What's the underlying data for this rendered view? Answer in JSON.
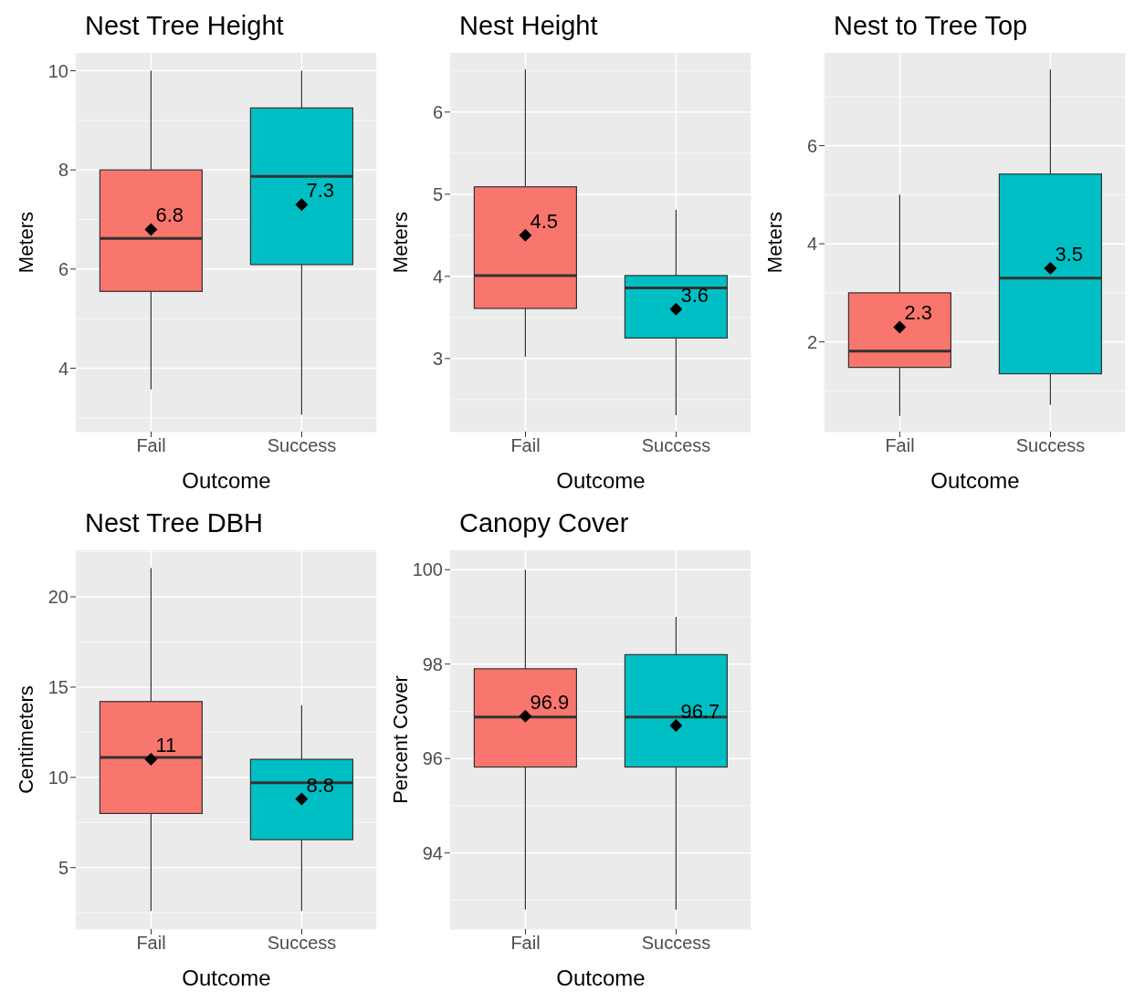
{
  "chart_data": [
    {
      "type": "box",
      "title": "Nest Tree Height",
      "xlabel": "Outcome",
      "ylabel": "Meters",
      "categories": [
        "Fail",
        "Success"
      ],
      "colors": [
        "#f8766d",
        "#00bfc4"
      ],
      "grid": true,
      "ylim": [
        2.72,
        10.36
      ],
      "yticks": [
        4,
        6,
        8,
        10
      ],
      "boxes": [
        {
          "low": 3.57,
          "q1": 5.55,
          "median": 6.62,
          "q3": 8,
          "high": 10,
          "mean": 6.8
        },
        {
          "low": 3.06,
          "q1": 6.09,
          "median": 7.87,
          "q3": 9.25,
          "high": 10,
          "mean": 7.3
        }
      ],
      "annotations": [
        "6.8",
        "7.3"
      ]
    },
    {
      "type": "box",
      "title": "Nest Height",
      "xlabel": "Outcome",
      "ylabel": "Meters",
      "categories": [
        "Fail",
        "Success"
      ],
      "colors": [
        "#f8766d",
        "#00bfc4"
      ],
      "grid": true,
      "ylim": [
        2.11,
        6.72
      ],
      "yticks": [
        3,
        4,
        5,
        6
      ],
      "boxes": [
        {
          "low": 3.02,
          "q1": 3.61,
          "median": 4.01,
          "q3": 5.09,
          "high": 6.52,
          "mean": 4.5
        },
        {
          "low": 2.31,
          "q1": 3.25,
          "median": 3.86,
          "q3": 4.01,
          "high": 4.81,
          "mean": 3.6
        }
      ],
      "annotations": [
        "4.5",
        "3.6"
      ]
    },
    {
      "type": "box",
      "title": "Nest to Tree Top",
      "xlabel": "Outcome",
      "ylabel": "Meters",
      "categories": [
        "Fail",
        "Success"
      ],
      "colors": [
        "#f8766d",
        "#00bfc4"
      ],
      "grid": true,
      "ylim": [
        0.17,
        7.89
      ],
      "yticks": [
        2,
        4,
        6
      ],
      "boxes": [
        {
          "low": 0.49,
          "q1": 1.48,
          "median": 1.81,
          "q3": 3,
          "high": 5,
          "mean": 2.3
        },
        {
          "low": 0.72,
          "q1": 1.35,
          "median": 3.3,
          "q3": 5.42,
          "high": 7.55,
          "mean": 3.5
        }
      ],
      "annotations": [
        "2.3",
        "3.5"
      ]
    },
    {
      "type": "box",
      "title": "Nest Tree DBH",
      "xlabel": "Outcome",
      "ylabel": "Centimeters",
      "categories": [
        "Fail",
        "Success"
      ],
      "colors": [
        "#f8766d",
        "#00bfc4"
      ],
      "grid": true,
      "ylim": [
        1.6,
        22.58
      ],
      "yticks": [
        5,
        10,
        15,
        20
      ],
      "boxes": [
        {
          "low": 2.6,
          "q1": 8,
          "median": 11.1,
          "q3": 14.2,
          "high": 21.6,
          "mean": 11
        },
        {
          "low": 2.6,
          "q1": 6.55,
          "median": 9.7,
          "q3": 11,
          "high": 14,
          "mean": 8.8
        }
      ],
      "annotations": [
        "11",
        "8.8"
      ]
    },
    {
      "type": "box",
      "title": "Canopy Cover",
      "xlabel": "Outcome",
      "ylabel": "Percent Cover",
      "categories": [
        "Fail",
        "Success"
      ],
      "colors": [
        "#f8766d",
        "#00bfc4"
      ],
      "grid": true,
      "ylim": [
        92.39,
        100.41
      ],
      "yticks": [
        94,
        96,
        98,
        100
      ],
      "boxes": [
        {
          "low": 92.8,
          "q1": 95.82,
          "median": 96.88,
          "q3": 97.9,
          "high": 100,
          "mean": 96.9
        },
        {
          "low": 92.8,
          "q1": 95.82,
          "median": 96.88,
          "q3": 98.2,
          "high": 99,
          "mean": 96.7
        }
      ],
      "annotations": [
        "96.9",
        "96.7"
      ]
    }
  ]
}
